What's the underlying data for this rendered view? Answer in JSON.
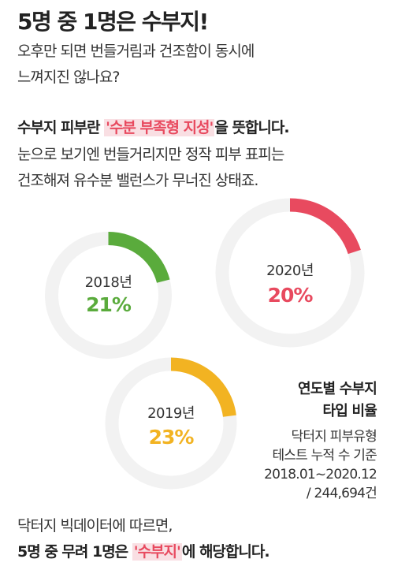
{
  "headline": "5명 중 1명은 수부지!",
  "intro": [
    "오후만 되면 번들거림과 건조함이 동시에",
    "느껴지진 않나요?"
  ],
  "definition": {
    "prefix": "수부지 피부란 ",
    "highlight": "'수분 부족형 지성'",
    "suffix": "을 뜻합니다.",
    "lines": [
      "눈으로 보기엔 번들거리지만 정작 피부 표피는",
      "건조해져 유수분 밸런스가 무너진 상태죠."
    ]
  },
  "colors": {
    "green": "#5aab3c",
    "red": "#e84a5f",
    "yellow": "#f2b322",
    "track": "#f2f2f2"
  },
  "chart_data": {
    "type": "donut",
    "title": "연도별 수부지 타입 비율",
    "items": [
      {
        "year": "2018년",
        "value": 21,
        "label": "21%",
        "color": "#5aab3c"
      },
      {
        "year": "2019년",
        "value": 23,
        "label": "23%",
        "color": "#f2b322"
      },
      {
        "year": "2020년",
        "value": 20,
        "label": "20%",
        "color": "#e84a5f"
      }
    ]
  },
  "legend": {
    "title_lines": [
      "연도별 수부지",
      "타입 비율"
    ],
    "note_lines": [
      "닥터지 피부유형",
      "테스트 누적 수 기준",
      "2018.01~2020.12",
      "/ 244,694건"
    ]
  },
  "footer": {
    "line1": "닥터지 빅데이터에 따르면,",
    "prefix": "5명 중 무려 1명은 ",
    "highlight": "'수부지'",
    "suffix": "에 해당합니다."
  }
}
